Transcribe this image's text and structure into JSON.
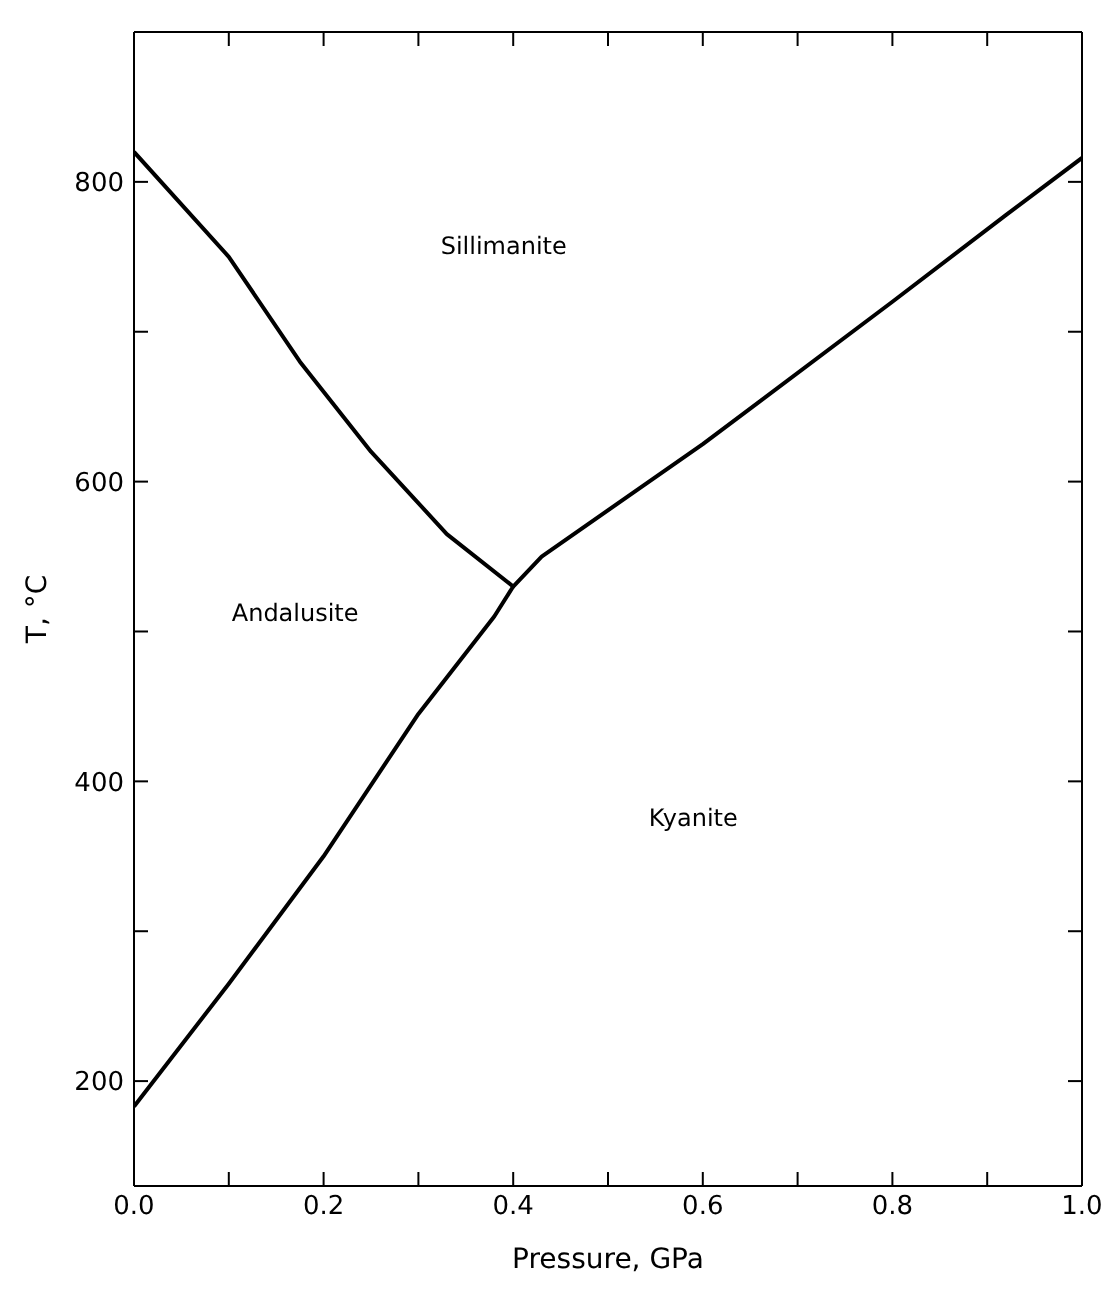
{
  "chart_data": {
    "type": "line",
    "xlabel": "Pressure, GPa",
    "ylabel": "T, °C",
    "xlim": [
      0,
      1.0
    ],
    "ylim": [
      130,
      900
    ],
    "xticks": [
      {
        "value": 0,
        "label": "0.0"
      },
      {
        "value": 0.1,
        "label": null
      },
      {
        "value": 0.2,
        "label": "0.2"
      },
      {
        "value": 0.3,
        "label": null
      },
      {
        "value": 0.4,
        "label": "0.4"
      },
      {
        "value": 0.5,
        "label": null
      },
      {
        "value": 0.6,
        "label": "0.6"
      },
      {
        "value": 0.7,
        "label": null
      },
      {
        "value": 0.8,
        "label": "0.8"
      },
      {
        "value": 0.9,
        "label": null
      },
      {
        "value": 1.0,
        "label": "1.0"
      }
    ],
    "yticks": [
      200,
      {
        "value": 300,
        "label": null
      },
      400,
      {
        "value": 500,
        "label": null
      },
      600,
      {
        "value": 700,
        "label": null
      },
      800
    ],
    "marker": "none",
    "line_style": "solid",
    "series": [
      {
        "color": "#000000",
        "x": [
          0,
          0.1,
          0.175,
          0.25,
          0.33,
          0.4,
          0.43,
          0.6,
          0.8,
          0.92,
          1.0
        ],
        "values": [
          820,
          750,
          680,
          620,
          565,
          530,
          550,
          625,
          720,
          778,
          816
        ]
      },
      {
        "color": "#000000",
        "x": [
          0,
          0.1,
          0.2,
          0.3,
          0.38,
          0.4
        ],
        "values": [
          183,
          265,
          350,
          445,
          510,
          530
        ]
      }
    ],
    "annotations": [
      "Sillimanite",
      "Andalusite",
      "Kyanite"
    ]
  }
}
